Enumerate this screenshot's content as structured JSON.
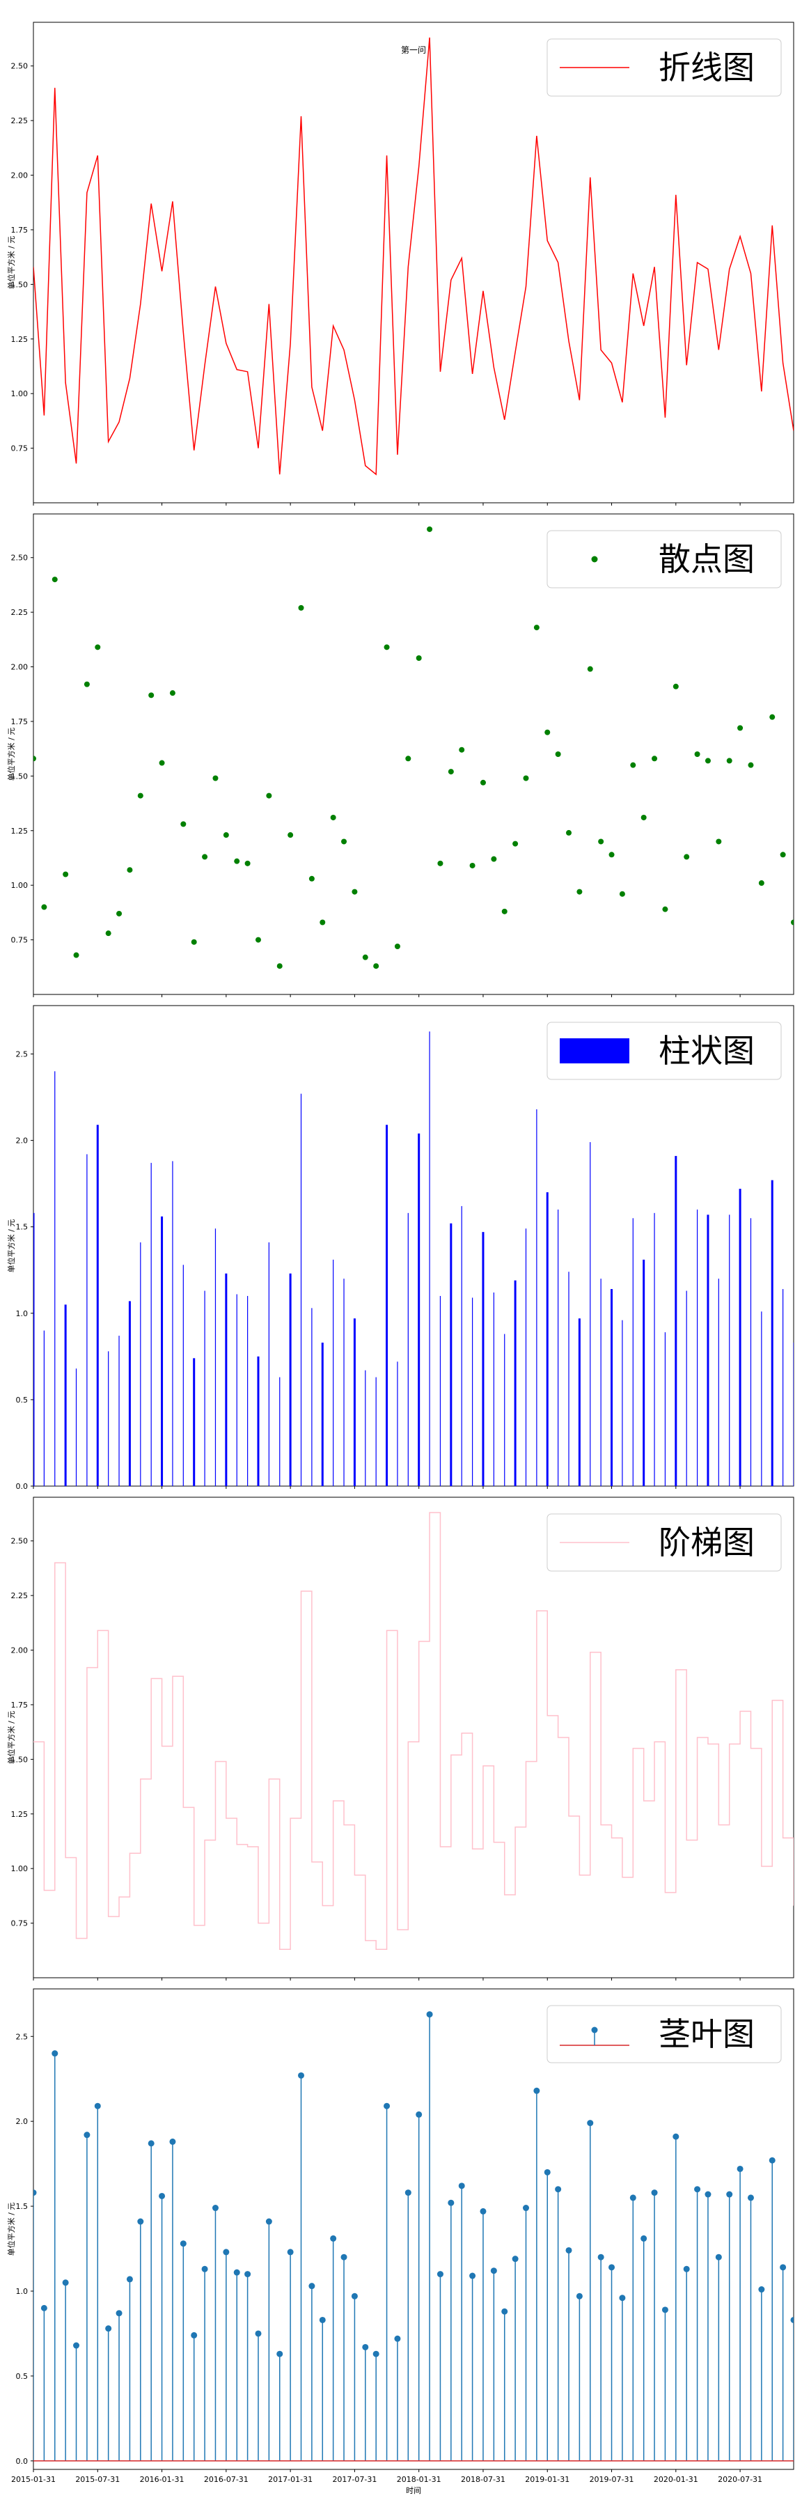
{
  "figure_title": "第一问",
  "xlabel": "时间",
  "ylabel": "单位平方米 / 元",
  "x_tick_labels": [
    "2015-01-31",
    "2015-07-31",
    "2016-01-31",
    "2016-07-31",
    "2017-01-31",
    "2017-07-31",
    "2018-01-31",
    "2018-07-31",
    "2019-01-31",
    "2019-07-31",
    "2020-01-31",
    "2020-07-31"
  ],
  "chart_data": [
    {
      "type": "line",
      "legend": "折线图",
      "legend_location": "top-right",
      "color": "#ff0000",
      "title": "第一问",
      "ylabel": "单位平方米 / 元",
      "ylim": [
        0.5,
        2.7
      ],
      "yticks": [
        0.75,
        1.0,
        1.25,
        1.5,
        1.75,
        2.0,
        2.25,
        2.5
      ],
      "x_range": [
        "2015-01-31",
        "2020-12-31"
      ],
      "series_ref": "shared_values"
    },
    {
      "type": "scatter",
      "legend": "散点图",
      "legend_location": "top-right",
      "color": "#008000",
      "ylabel": "单位平方米 / 元",
      "ylim": [
        0.5,
        2.7
      ],
      "yticks": [
        0.75,
        1.0,
        1.25,
        1.5,
        1.75,
        2.0,
        2.25,
        2.5
      ],
      "series_ref": "shared_values"
    },
    {
      "type": "bar",
      "legend": "柱状图",
      "legend_location": "top-right",
      "color": "#0000ff",
      "ylabel": "单位平方米 / 元",
      "ylim": [
        0,
        2.78
      ],
      "yticks": [
        0.0,
        0.5,
        1.0,
        1.5,
        2.0,
        2.5
      ],
      "series_ref": "shared_values"
    },
    {
      "type": "step",
      "legend": "阶梯图",
      "legend_location": "top-right",
      "color": "#ffc0cb",
      "ylabel": "单位平方米 / 元",
      "ylim": [
        0.5,
        2.7
      ],
      "yticks": [
        0.75,
        1.0,
        1.25,
        1.5,
        1.75,
        2.0,
        2.25,
        2.5
      ],
      "series_ref": "shared_values"
    },
    {
      "type": "stem",
      "legend": "茎叶图",
      "legend_location": "top-right",
      "color": "#1f77b4",
      "baseline_color": "#d62728",
      "xlabel": "时间",
      "ylabel": "单位平方米 / 元",
      "ylim": [
        -0.05,
        2.78
      ],
      "yticks": [
        0.0,
        0.5,
        1.0,
        1.5,
        2.0,
        2.5
      ],
      "series_ref": "shared_values"
    }
  ],
  "shared_values": {
    "x_start": "2015-01-31",
    "frequency": "monthly",
    "values": [
      1.58,
      0.9,
      2.4,
      1.05,
      0.68,
      1.92,
      2.09,
      0.78,
      0.87,
      1.07,
      1.41,
      1.87,
      1.56,
      1.88,
      1.28,
      0.74,
      1.13,
      1.49,
      1.23,
      1.11,
      1.1,
      0.75,
      1.41,
      0.63,
      1.23,
      2.27,
      1.03,
      0.83,
      1.31,
      1.2,
      0.97,
      0.67,
      0.63,
      2.09,
      0.72,
      1.58,
      2.04,
      2.63,
      1.1,
      1.52,
      1.62,
      1.09,
      1.47,
      1.12,
      0.88,
      1.19,
      1.49,
      2.18,
      1.7,
      1.6,
      1.24,
      0.97,
      1.99,
      1.2,
      1.14,
      0.96,
      1.55,
      1.31,
      1.58,
      0.89,
      1.91,
      1.13,
      1.6,
      1.57,
      1.2,
      1.57,
      1.72,
      1.55,
      1.01,
      1.77,
      1.14,
      0.83
    ]
  }
}
